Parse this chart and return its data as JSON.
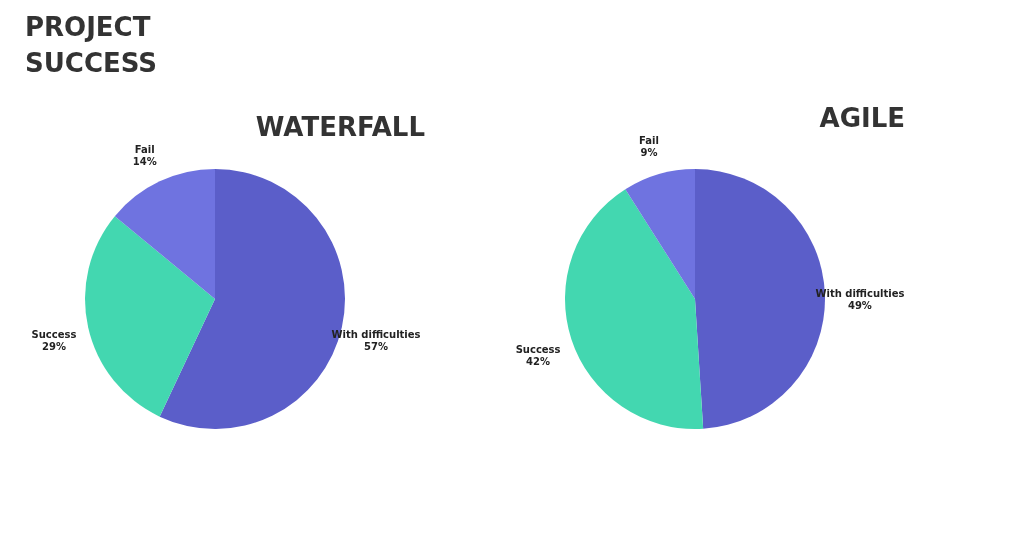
{
  "chart_data": [
    {
      "type": "other",
      "title": "PROJECT SUCCESS"
    },
    {
      "type": "pie",
      "title": "WATERFALL",
      "categories": [
        "With difficulties",
        "Success",
        "Fail"
      ],
      "values": [
        57,
        29,
        14
      ],
      "value_labels": [
        "57%",
        "29%",
        "14%"
      ],
      "colors": [
        "#5b5ec9",
        "#43d7b0",
        "#6f73e0"
      ],
      "legend": false
    },
    {
      "type": "pie",
      "title": "AGILE",
      "categories": [
        "With difficulties",
        "Success",
        "Fail"
      ],
      "values": [
        49,
        42,
        9
      ],
      "value_labels": [
        "49%",
        "42%",
        "9%"
      ],
      "colors": [
        "#5b5ec9",
        "#43d7b0",
        "#6f73e0"
      ],
      "legend": false
    }
  ]
}
